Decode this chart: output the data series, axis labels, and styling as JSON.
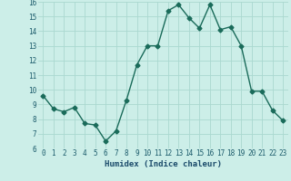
{
  "x": [
    0,
    1,
    2,
    3,
    4,
    5,
    6,
    7,
    8,
    9,
    10,
    11,
    12,
    13,
    14,
    15,
    16,
    17,
    18,
    19,
    20,
    21,
    22,
    23
  ],
  "y": [
    9.6,
    8.7,
    8.5,
    8.8,
    7.7,
    7.6,
    6.5,
    7.2,
    9.3,
    11.7,
    13.0,
    13.0,
    15.4,
    15.8,
    14.9,
    14.2,
    15.8,
    14.1,
    14.3,
    13.0,
    9.9,
    9.9,
    8.6,
    7.9
  ],
  "line_color": "#1a6b5a",
  "bg_color": "#cceee8",
  "grid_color": "#aad8d0",
  "xlabel": "Humidex (Indice chaleur)",
  "xlabel_color": "#1a4a6a",
  "tick_label_color": "#1a5a6a",
  "ylim": [
    6,
    16
  ],
  "xlim_min": -0.5,
  "xlim_max": 23.5,
  "yticks": [
    6,
    7,
    8,
    9,
    10,
    11,
    12,
    13,
    14,
    15,
    16
  ],
  "xticks": [
    0,
    1,
    2,
    3,
    4,
    5,
    6,
    7,
    8,
    9,
    10,
    11,
    12,
    13,
    14,
    15,
    16,
    17,
    18,
    19,
    20,
    21,
    22,
    23
  ],
  "marker": "D",
  "markersize": 2.5,
  "linewidth": 1.0,
  "tick_fontsize": 5.5,
  "xlabel_fontsize": 6.5
}
